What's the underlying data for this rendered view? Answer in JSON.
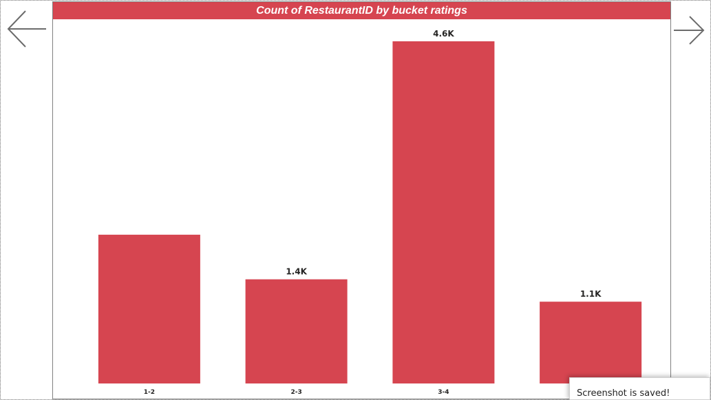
{
  "nav": {
    "back_icon": "arrow-left-icon",
    "forward_icon": "arrow-right-icon"
  },
  "colors": {
    "bar": "#d64550",
    "title_bg": "#d64550",
    "title_text": "#ffffff",
    "label_text": "#252423"
  },
  "chart_data": {
    "type": "bar",
    "title": "Count of RestaurantID by bucket ratings",
    "xlabel": "",
    "ylabel": "",
    "categories": [
      "1-2",
      "2-3",
      "3-4",
      "4-5"
    ],
    "values": [
      2000,
      1400,
      4600,
      1100
    ],
    "data_labels": [
      "",
      "1.4K",
      "4.6K",
      "1.1K"
    ],
    "ylim": [
      0,
      4600
    ],
    "grid": false,
    "legend": "none"
  },
  "toast": {
    "message": "Screenshot is saved!"
  }
}
